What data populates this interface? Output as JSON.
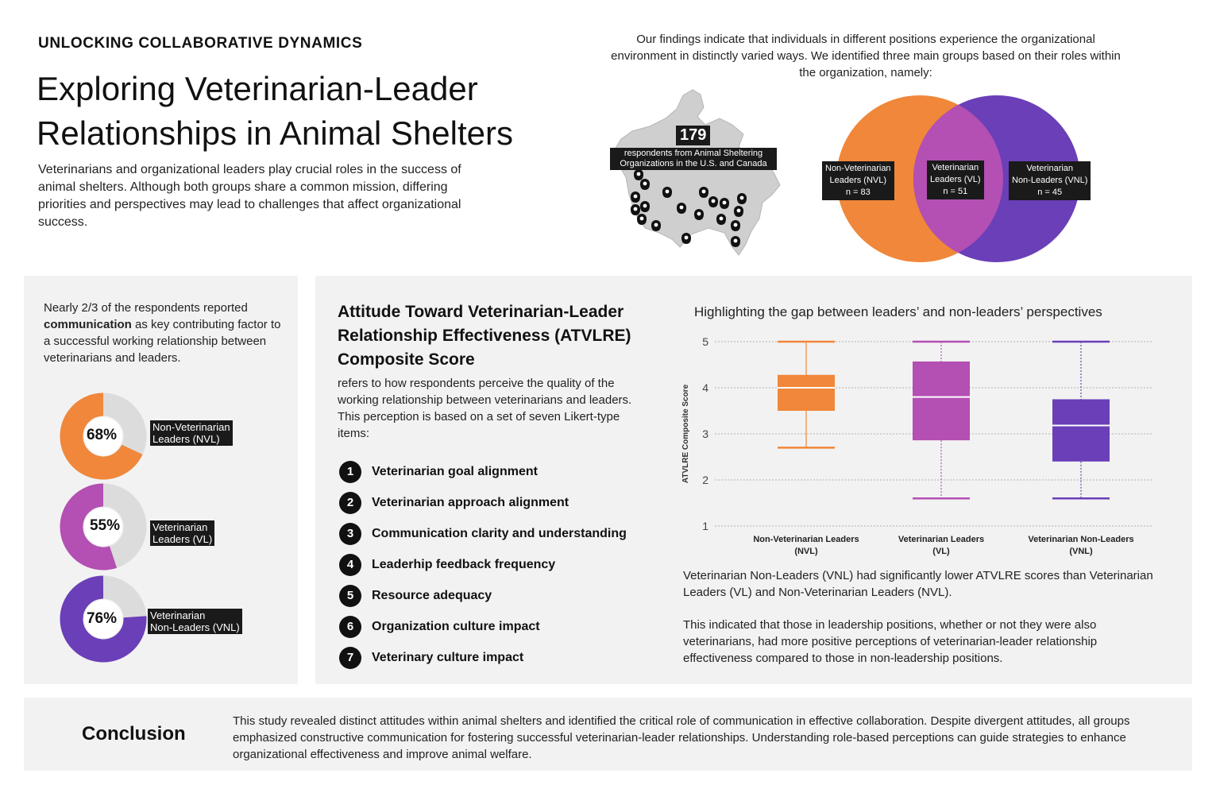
{
  "header": {
    "kicker": "UNLOCKING COLLABORATIVE DYNAMICS",
    "title": "Exploring Veterinarian-Leader Relationships in Animal Shelters",
    "intro": "Veterinarians and organizational leaders play crucial roles in the success of animal shelters. Although both groups share a common mission, differing priorities and perspectives may lead to challenges that affect organizational success."
  },
  "findings": {
    "text": "Our findings indicate that individuals in different positions experience the organizational environment in distinctly varied ways. We identified three main groups based on their roles within the organization, namely:"
  },
  "map": {
    "count": "179",
    "label": "respondents from Animal Sheltering Organizations in the U.S. and Canada"
  },
  "venn": {
    "nvl": {
      "line1": "Non-Veterinarian",
      "line2": "Leaders (NVL)",
      "n": "n = 83",
      "color": "#f0873a"
    },
    "vl": {
      "line1": "Veterinarian",
      "line2": "Leaders (VL)",
      "n": "n = 51",
      "color": "#b44fb3"
    },
    "vnl": {
      "line1": "Veterinarian",
      "line2": "Non-Leaders (VNL)",
      "n": "n = 45",
      "color": "#6a3fb8"
    }
  },
  "communication": {
    "pre": "Nearly 2/3 of the respondents reported ",
    "bold": "communication",
    "post": " as key contributing factor to a successful working relationship between  veterinarians and leaders.",
    "donuts": [
      {
        "pct": "68%",
        "value": 68,
        "line1": "Non-Veterinarian",
        "line2": "Leaders (NVL)",
        "color": "#f0873a"
      },
      {
        "pct": "55%",
        "value": 55,
        "line1": "Veterinarian",
        "line2": "Leaders (VL)",
        "color": "#b44fb3"
      },
      {
        "pct": "76%",
        "value": 76,
        "line1": "Veterinarian",
        "line2": "Non-Leaders (VNL)",
        "color": "#6a3fb8"
      }
    ]
  },
  "atvlre": {
    "title": "Attitude Toward Veterinarian-Leader Relationship Effectiveness (ATVLRE) Composite Score",
    "desc": "refers to how respondents perceive the quality of the working relationship between veterinarians and leaders.  This perception is based on a set of seven Likert-type items:",
    "items": [
      {
        "num": "1",
        "label": "Veterinarian goal alignment"
      },
      {
        "num": "2",
        "label": "Veterinarian approach alignment"
      },
      {
        "num": "3",
        "label": "Communication clarity and understanding"
      },
      {
        "num": "4",
        "label": "Leaderhip feedback frequency"
      },
      {
        "num": "5",
        "label": "Resource adequacy"
      },
      {
        "num": "6",
        "label": "Organization culture impact"
      },
      {
        "num": "7",
        "label": "Veterinary culture impact"
      }
    ]
  },
  "chart_data": {
    "type": "boxplot",
    "title": "Highlighting the gap between leaders’ and non-leaders’ perspectives",
    "ylabel": "ATVLRE Composite Score",
    "ylim": [
      1,
      5
    ],
    "yticks": [
      "1",
      "2",
      "3",
      "4",
      "5"
    ],
    "grid": true,
    "groups": [
      {
        "line1": "Non-Veterinarian Leaders",
        "line2": "(NVL)",
        "min": 2.7,
        "q1": 3.5,
        "median": 4.0,
        "q3": 4.28,
        "max": 5.0,
        "color": "#f0873a"
      },
      {
        "line1": "Veterinarian Leaders",
        "line2": "(VL)",
        "min": 1.6,
        "q1": 2.86,
        "median": 3.8,
        "q3": 4.57,
        "max": 5.0,
        "color": "#b44fb3"
      },
      {
        "line1": "Veterinarian Non-Leaders",
        "line2": "(VNL)",
        "min": 1.6,
        "q1": 2.4,
        "median": 3.18,
        "q3": 3.75,
        "max": 5.0,
        "color": "#6a3fb8"
      }
    ]
  },
  "results": {
    "p1": "Veterinarian Non-Leaders (VNL) had significantly lower ATVLRE scores than Veterinarian Leaders (VL) and Non-Veterinarian Leaders (NVL).",
    "p2": "This indicated that those in leadership positions, whether or not they were also veterinarians, had more positive perceptions of veterinarian-leader relationship effectiveness compared to those in non-leadership positions."
  },
  "conclusion": {
    "heading": "Conclusion",
    "text": "This study revealed distinct attitudes within animal shelters and identified the critical role of communication in effective collaboration. Despite divergent attitudes, all groups emphasized constructive communication for fostering successful veterinarian-leader relationships. Understanding role-based perceptions can guide strategies to enhance organizational effectiveness and improve animal welfare."
  }
}
